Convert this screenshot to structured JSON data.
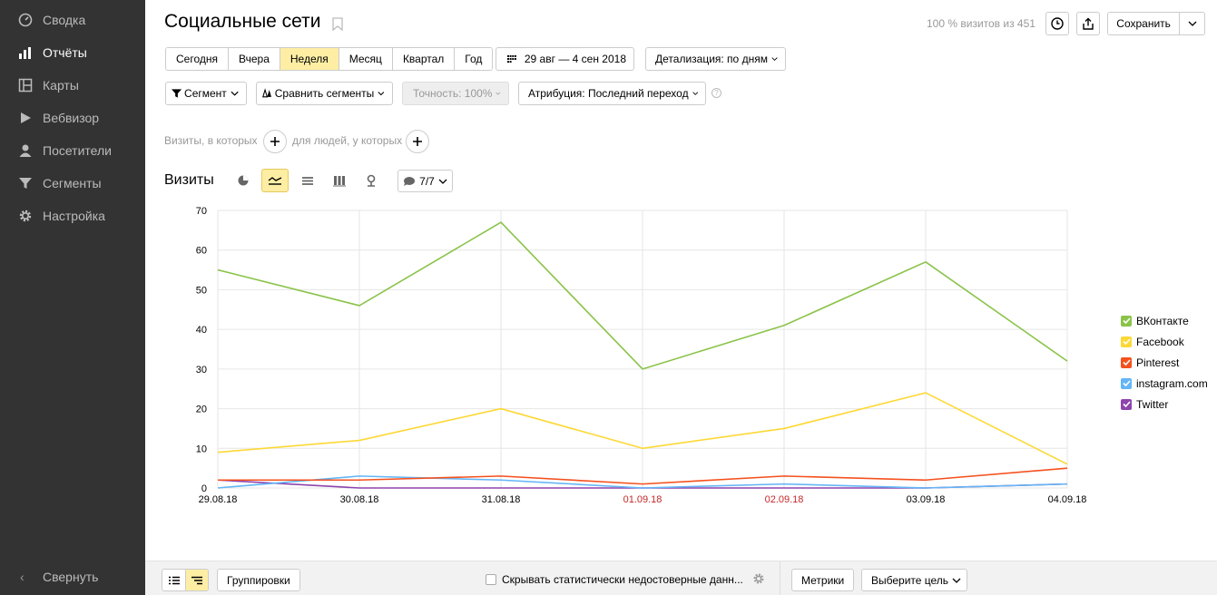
{
  "sidebar": {
    "items": [
      {
        "label": "Сводка",
        "icon": "dashboard-icon"
      },
      {
        "label": "Отчёты",
        "icon": "reports-icon",
        "active": true
      },
      {
        "label": "Карты",
        "icon": "maps-icon"
      },
      {
        "label": "Вебвизор",
        "icon": "play-icon"
      },
      {
        "label": "Посетители",
        "icon": "user-icon"
      },
      {
        "label": "Сегменты",
        "icon": "funnel-icon"
      },
      {
        "label": "Настройка",
        "icon": "gear-icon"
      }
    ],
    "collapse_label": "Свернуть"
  },
  "header": {
    "title": "Социальные сети",
    "visits_info": "100 % визитов из 451",
    "save_label": "Сохранить"
  },
  "periods": [
    "Сегодня",
    "Вчера",
    "Неделя",
    "Месяц",
    "Квартал",
    "Год"
  ],
  "active_period": "Неделя",
  "date_range": "29 авг — 4 сен 2018",
  "detail_label": "Детализация: по дням",
  "filters": {
    "segment": "Сегмент",
    "compare": "Сравнить сегменты",
    "accuracy": "Точность: 100%",
    "attribution": "Атрибуция: Последний переход",
    "help": "?",
    "visits_where": "Визиты, в которых",
    "people_where": "для людей, у которых"
  },
  "chart_section": {
    "title": "Визиты",
    "notes_label": "7/7"
  },
  "colors": {
    "vk": "#8bc34a",
    "facebook": "#fdd835",
    "pinterest": "#f4511e",
    "instagram": "#64b5f6",
    "twitter": "#8e44ad",
    "weekend": "#c62828"
  },
  "chart_data": {
    "type": "line",
    "x": [
      "29.08.18",
      "30.08.18",
      "31.08.18",
      "01.09.18",
      "02.09.18",
      "03.09.18",
      "04.09.18"
    ],
    "weekend": [
      false,
      false,
      false,
      true,
      true,
      false,
      false
    ],
    "ylim": [
      0,
      70
    ],
    "yticks": [
      "0",
      "10",
      "20",
      "30",
      "40",
      "50",
      "60",
      "70"
    ],
    "grid": true,
    "legend_position": "right",
    "series": [
      {
        "name": "ВКонтакте",
        "color": "#8bc34a",
        "values": [
          55,
          46,
          67,
          30,
          41,
          57,
          32
        ]
      },
      {
        "name": "Facebook",
        "color": "#fdd835",
        "values": [
          9,
          12,
          20,
          10,
          15,
          24,
          6
        ]
      },
      {
        "name": "Pinterest",
        "color": "#f4511e",
        "values": [
          2,
          2,
          3,
          1,
          3,
          2,
          5
        ]
      },
      {
        "name": "instagram.com",
        "color": "#64b5f6",
        "values": [
          0,
          3,
          2,
          0,
          1,
          0,
          1
        ]
      },
      {
        "name": "Twitter",
        "color": "#8e44ad",
        "values": [
          2,
          0,
          0,
          0,
          0,
          0,
          1
        ]
      }
    ]
  },
  "footer": {
    "groupings": "Группировки",
    "hide_unreliable": "Скрывать статистически недостоверные данн...",
    "metrics": "Метрики",
    "choose_goal": "Выберите цель"
  }
}
